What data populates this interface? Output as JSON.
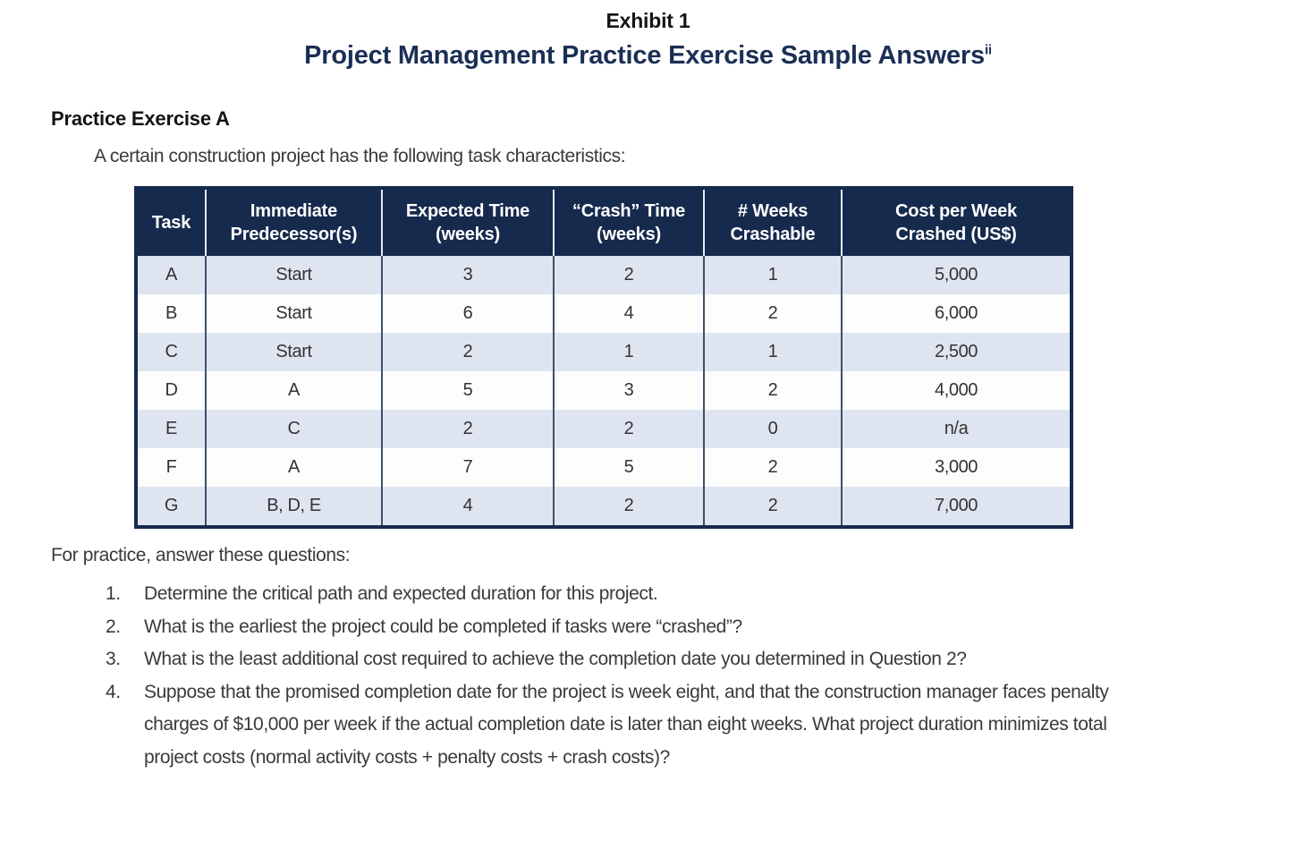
{
  "exhibit": {
    "label": "Exhibit 1",
    "title": "Project Management Practice Exercise Sample Answers",
    "footnote_ref": "ii"
  },
  "section": {
    "heading": "Practice Exercise A",
    "intro": "A certain construction project has the following task characteristics:"
  },
  "table": {
    "headers": [
      {
        "line1": "Task",
        "line2": ""
      },
      {
        "line1": "Immediate",
        "line2": "Predecessor(s)"
      },
      {
        "line1": "Expected Time",
        "line2": "(weeks)"
      },
      {
        "line1": "“Crash” Time",
        "line2": "(weeks)"
      },
      {
        "line1": "# Weeks",
        "line2": "Crashable"
      },
      {
        "line1": "Cost per Week",
        "line2": "Crashed (US$)"
      }
    ],
    "rows": [
      [
        "A",
        "Start",
        "3",
        "2",
        "1",
        "5,000"
      ],
      [
        "B",
        "Start",
        "6",
        "4",
        "2",
        "6,000"
      ],
      [
        "C",
        "Start",
        "2",
        "1",
        "1",
        "2,500"
      ],
      [
        "D",
        "A",
        "5",
        "3",
        "2",
        "4,000"
      ],
      [
        "E",
        "C",
        "2",
        "2",
        "0",
        "n/a"
      ],
      [
        "F",
        "A",
        "7",
        "5",
        "2",
        "3,000"
      ],
      [
        "G",
        "B, D, E",
        "4",
        "2",
        "2",
        "7,000"
      ]
    ]
  },
  "questions": {
    "intro": "For practice, answer these questions:",
    "items": [
      "Determine the critical path and expected duration for this project.",
      "What is the earliest the project could be completed if tasks were “crashed”?",
      "What is the least additional cost required to achieve the completion date you determined in Question 2?",
      "Suppose that the promised completion date for the project is week eight, and that the construction manager faces penalty charges of $10,000 per week if the actual completion date is later than eight weeks. What project duration minimizes total project costs (normal activity costs + penalty costs + crash costs)?"
    ]
  },
  "colors": {
    "header_bg": "#152a4d",
    "row_alt_bg": "#dee5f1",
    "row_bg": "#fdfdfe",
    "title_color": "#1a2f55",
    "border_color": "#152a4d"
  }
}
